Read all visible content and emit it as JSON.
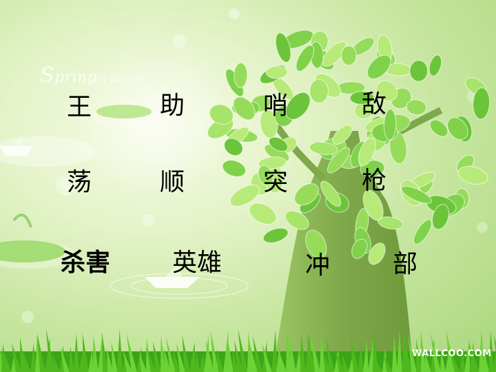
{
  "watermarks": {
    "spring_big": "S",
    "spring_rest": "pring",
    "spring_small": "in wallcoo",
    "brand": "WALLCOO.COM"
  },
  "words": {
    "row1": [
      "王",
      "助",
      "哨",
      "敌"
    ],
    "row2": [
      "荡",
      "顺",
      "突",
      "枪"
    ],
    "row3": [
      "杀害",
      "英雄",
      "冲",
      "部"
    ]
  },
  "colors": {
    "text": "#000000",
    "leaf": "#7fd24a",
    "leaf_light": "#b8ea7a",
    "trunk": "#7fa84a",
    "grass": "#4fb81e"
  }
}
